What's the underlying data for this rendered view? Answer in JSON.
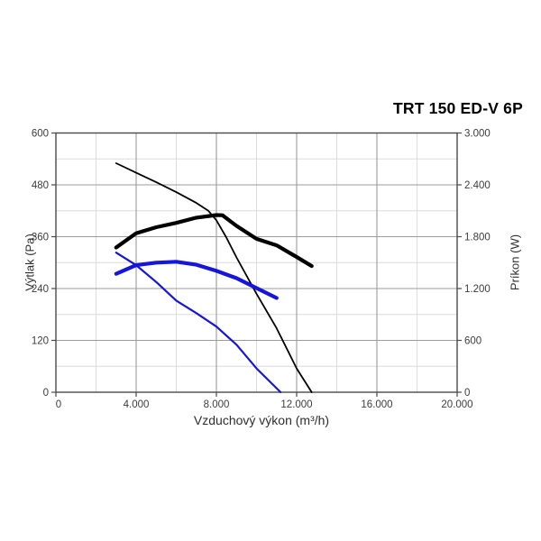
{
  "chart_data": {
    "type": "line",
    "title": "TRT 150 ED-V 6P",
    "xlabel": "Vzduchový výkon (m³/h)",
    "ylabel_left": "Výtlak (Pa)",
    "ylabel_right": "Príkon (W)",
    "xlim": [
      0,
      20000
    ],
    "ylim_left": [
      0,
      600
    ],
    "ylim_right": [
      0,
      3000
    ],
    "grid": true,
    "legend": "none",
    "x_ticks": {
      "values": [
        0,
        4000,
        8000,
        12000,
        16000,
        20000
      ],
      "labels": [
        "0",
        "4.000",
        "8.000",
        "12.000",
        "16.000",
        "20.000"
      ]
    },
    "x_minor": [
      2000,
      6000,
      10000,
      14000,
      18000
    ],
    "left_ticks": {
      "values": [
        0,
        120,
        240,
        360,
        480,
        600
      ],
      "labels": [
        "0",
        "120",
        "240",
        "360",
        "480",
        "600"
      ]
    },
    "left_minor": [
      60,
      180,
      300,
      420,
      540
    ],
    "right_ticks": {
      "values": [
        0,
        600,
        1200,
        1800,
        2400,
        3000
      ],
      "labels": [
        "0",
        "600",
        "1.200",
        "1.800",
        "2.400",
        "3.000"
      ]
    },
    "colors": {
      "high_speed": "#000000",
      "low_speed": "#1515dd",
      "grid_minor": "#dcdcdc",
      "grid_major": "#9b9b9b",
      "frame": "#4a4a4a",
      "tick_text": "#3d3d3d"
    },
    "series": [
      {
        "name": "pressure-high-speed",
        "axis": "left",
        "units": "Pa",
        "color": "#000000",
        "width": 1.8,
        "x": [
          3000,
          4000,
          5000,
          6000,
          7000,
          7600,
          8000,
          8500,
          9000,
          10000,
          11000,
          12000,
          12750
        ],
        "y": [
          530,
          508,
          486,
          463,
          438,
          420,
          398,
          358,
          312,
          228,
          148,
          55,
          0
        ]
      },
      {
        "name": "power-high-speed",
        "axis": "right",
        "units": "W",
        "color": "#000000",
        "width": 4.2,
        "x": [
          3000,
          4000,
          5000,
          6000,
          7000,
          8000,
          8300,
          9000,
          10000,
          11000,
          12000,
          12750
        ],
        "y": [
          1675,
          1840,
          1910,
          1960,
          2020,
          2050,
          2048,
          1925,
          1775,
          1700,
          1565,
          1460
        ]
      },
      {
        "name": "power-low-speed",
        "axis": "right",
        "units": "W",
        "color": "#1515dd",
        "width": 4.2,
        "x": [
          3000,
          4000,
          5000,
          6000,
          7000,
          8000,
          9000,
          10000,
          11000
        ],
        "y": [
          1370,
          1470,
          1500,
          1510,
          1475,
          1405,
          1320,
          1205,
          1090
        ]
      },
      {
        "name": "pressure-low-speed",
        "axis": "left",
        "units": "Pa",
        "color": "#1515dd",
        "width": 2.2,
        "x": [
          3000,
          4000,
          5000,
          6000,
          7000,
          8000,
          9000,
          10000,
          11200
        ],
        "y": [
          323,
          294,
          255,
          212,
          183,
          152,
          110,
          55,
          0
        ]
      }
    ]
  }
}
